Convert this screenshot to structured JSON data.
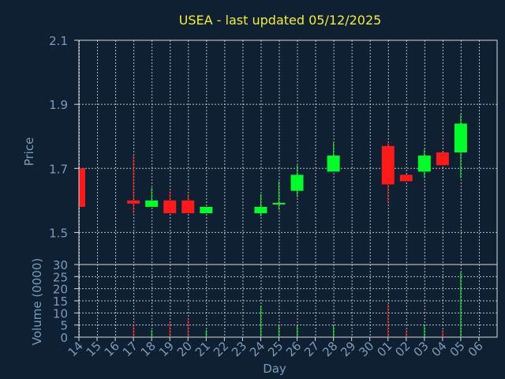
{
  "chart_data": {
    "type": "candlestick",
    "title": "USEA - last updated 05/12/2025",
    "xlabel": "Day",
    "price_panel": {
      "ylabel": "Price",
      "ylim": [
        1.4,
        2.1
      ],
      "yticks": [
        "2.1",
        "1.9",
        "1.7",
        "1.5"
      ],
      "grid": true
    },
    "volume_panel": {
      "ylabel": "Volume (0000)",
      "ylim": [
        0,
        30
      ],
      "yticks": [
        "30",
        "25",
        "20",
        "15",
        "10",
        "5",
        "0"
      ],
      "grid": true
    },
    "x_ticks": [
      "14",
      "15",
      "16",
      "17",
      "18",
      "19",
      "20",
      "21",
      "22",
      "23",
      "24",
      "25",
      "26",
      "27",
      "28",
      "29",
      "30",
      "01",
      "02",
      "03",
      "04",
      "05",
      "06"
    ],
    "candles": [
      {
        "day": "14",
        "open": 1.7,
        "close": 1.58,
        "high": 1.7,
        "low": 1.58,
        "volume": 0
      },
      {
        "day": "17",
        "open": 1.6,
        "close": 1.59,
        "high": 1.74,
        "low": 1.56,
        "volume": 5
      },
      {
        "day": "18",
        "open": 1.58,
        "close": 1.6,
        "high": 1.64,
        "low": 1.58,
        "volume": 3
      },
      {
        "day": "19",
        "open": 1.6,
        "close": 1.56,
        "high": 1.63,
        "low": 1.56,
        "volume": 6
      },
      {
        "day": "20",
        "open": 1.6,
        "close": 1.56,
        "high": 1.62,
        "low": 1.56,
        "volume": 8
      },
      {
        "day": "21",
        "open": 1.56,
        "close": 1.58,
        "high": 1.58,
        "low": 1.56,
        "volume": 3
      },
      {
        "day": "24",
        "open": 1.56,
        "close": 1.58,
        "high": 1.62,
        "low": 1.55,
        "volume": 13
      },
      {
        "day": "25",
        "open": 1.59,
        "close": 1.59,
        "high": 1.66,
        "low": 1.57,
        "volume": 5
      },
      {
        "day": "26",
        "open": 1.63,
        "close": 1.68,
        "high": 1.71,
        "low": 1.61,
        "volume": 5
      },
      {
        "day": "28",
        "open": 1.69,
        "close": 1.74,
        "high": 1.78,
        "low": 1.69,
        "volume": 5
      },
      {
        "day": "01",
        "open": 1.77,
        "close": 1.65,
        "high": 1.78,
        "low": 1.59,
        "volume": 14
      },
      {
        "day": "02",
        "open": 1.68,
        "close": 1.66,
        "high": 1.68,
        "low": 1.66,
        "volume": 3
      },
      {
        "day": "03",
        "open": 1.69,
        "close": 1.74,
        "high": 1.76,
        "low": 1.67,
        "volume": 5
      },
      {
        "day": "04",
        "open": 1.75,
        "close": 1.71,
        "high": 1.75,
        "low": 1.71,
        "volume": 3
      },
      {
        "day": "05",
        "open": 1.75,
        "close": 1.84,
        "high": 1.87,
        "low": 1.67,
        "volume": 27
      }
    ],
    "colors": {
      "up": "#00ff2a",
      "down": "#ff1a1a",
      "background": "#0f2033",
      "title": "#f2ee2e",
      "axis_text": "#7b9bb8",
      "grid": "#d8d8d8"
    }
  }
}
